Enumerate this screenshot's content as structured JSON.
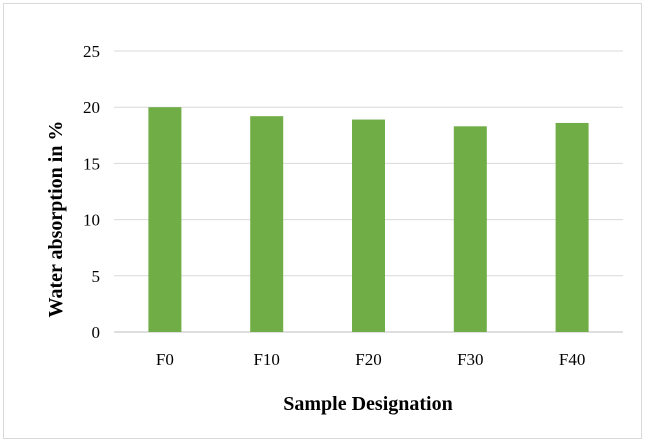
{
  "chart_data": {
    "type": "bar",
    "title": "",
    "xlabel": "Sample Designation",
    "ylabel": "Water absorption in %",
    "categories": [
      "F0",
      "F10",
      "F20",
      "F30",
      "F40"
    ],
    "values": [
      20.0,
      19.2,
      18.9,
      18.3,
      18.6
    ],
    "ylim": [
      0,
      25
    ],
    "yticks": [
      0,
      5,
      10,
      15,
      20,
      25
    ],
    "grid": true,
    "legend": "none",
    "colors": {
      "bar": "#70ad47",
      "grid": "#d9d9d9",
      "axis": "#bfbfbf"
    }
  }
}
